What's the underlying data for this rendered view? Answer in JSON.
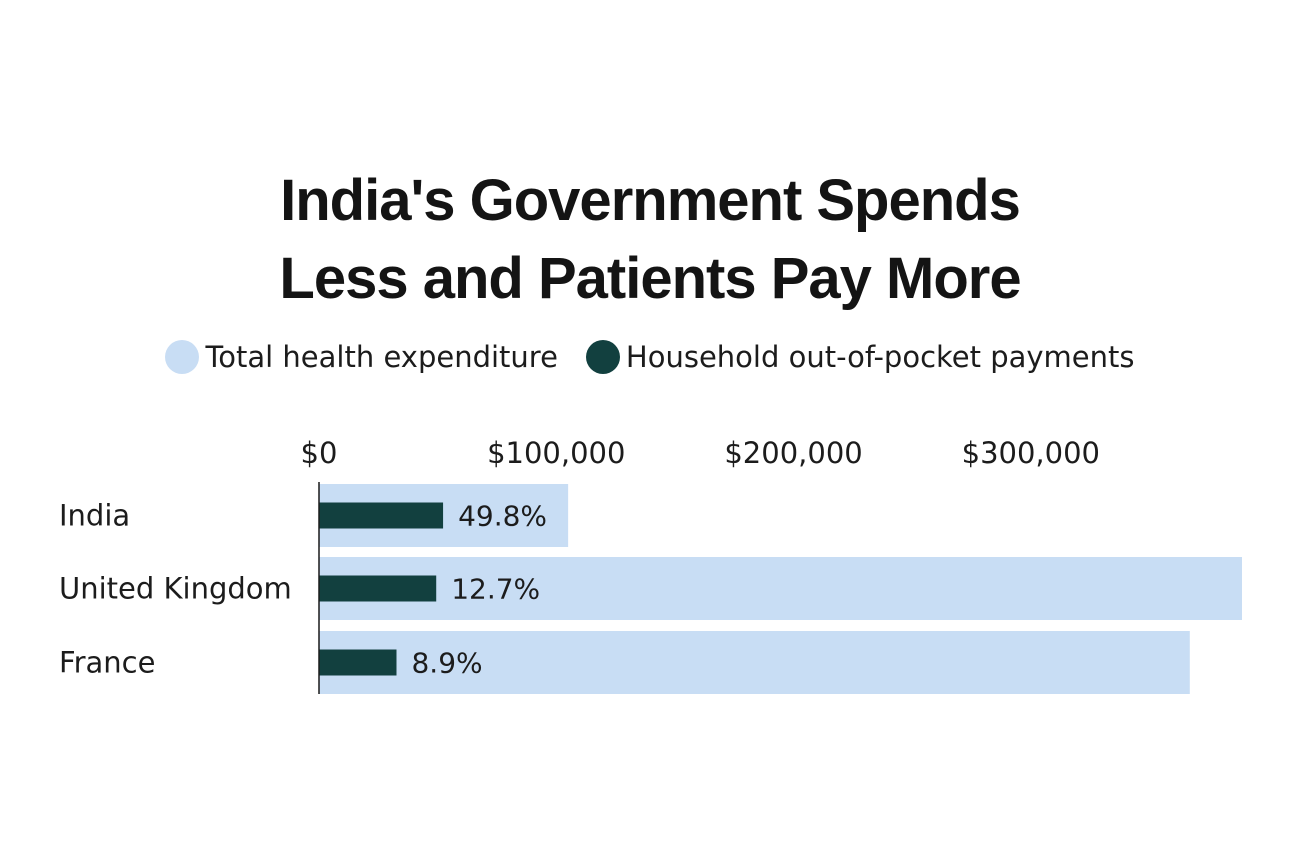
{
  "chart_data": {
    "type": "bar",
    "title_lines": [
      "India's Government Spends",
      "Less and Patients Pay More"
    ],
    "legend": [
      {
        "label": "Total health expenditure",
        "color": "#c8ddf4"
      },
      {
        "label": "Household out-of-pocket payments",
        "color": "#12403f"
      }
    ],
    "categories": [
      "India",
      "United Kingdom",
      "France"
    ],
    "series": [
      {
        "name": "Total health expenditure",
        "values": [
          105000,
          389000,
          367000
        ]
      },
      {
        "name": "Household out-of-pocket payments",
        "values": [
          52290,
          49400,
          32660
        ]
      }
    ],
    "bar_labels": [
      "49.8%",
      "12.7%",
      "8.9%"
    ],
    "x_ticks": [
      0,
      100000,
      200000,
      300000
    ],
    "x_tick_labels": [
      "$0",
      "$100,000",
      "$200,000",
      "$300,000"
    ],
    "xlim": [
      0,
      389000
    ],
    "axis_position": "top"
  }
}
